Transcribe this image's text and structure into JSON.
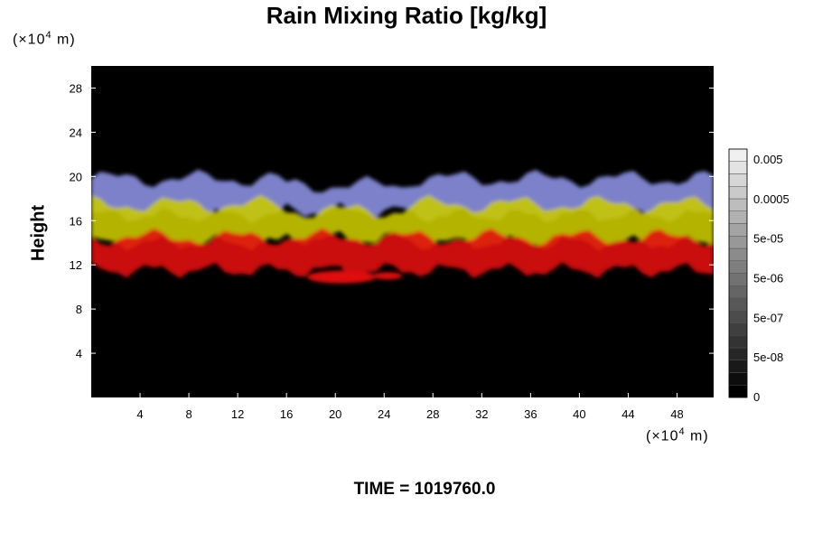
{
  "chart_data": {
    "type": "heatmap",
    "title": "Rain Mixing Ratio [kg/kg]",
    "ylabel": "Height",
    "xlabel": "",
    "x_unit_prefix": "(×10",
    "x_unit_exp": "4",
    "x_unit_suffix": " m)",
    "y_unit_prefix": "(×10",
    "y_unit_exp": "4",
    "y_unit_suffix": " m)",
    "xlim": [
      0,
      51
    ],
    "ylim": [
      0,
      30
    ],
    "x_ticks": [
      4,
      8,
      12,
      16,
      20,
      24,
      28,
      32,
      36,
      40,
      44,
      48
    ],
    "y_ticks": [
      4,
      8,
      12,
      16,
      20,
      24,
      28
    ],
    "x_tick_labels": [
      "4",
      "8",
      "12",
      "16",
      "20",
      "24",
      "28",
      "32",
      "36",
      "40",
      "44",
      "48"
    ],
    "y_tick_labels": [
      "4",
      "8",
      "12",
      "16",
      "20",
      "24",
      "28"
    ],
    "background": "#000000",
    "layers": [
      {
        "name": "blue",
        "color": "#8a8fe0",
        "y_bottom": 16.5,
        "y_top": 19.8
      },
      {
        "name": "yellow",
        "color": "#c8c800",
        "y_bottom": 14,
        "y_top": 17.5
      },
      {
        "name": "red",
        "color": "#e01010",
        "y_bottom": 11.5,
        "y_top": 14.5
      }
    ],
    "colorbar": {
      "scale": "log",
      "levels": 20,
      "labels": [
        "0",
        "5e-08",
        "5e-07",
        "5e-06",
        "5e-05",
        "0.0005",
        "0.005"
      ],
      "color_low": "#000000",
      "color_high": "#f0f0f0"
    }
  },
  "footer": {
    "label": "TIME = 1019760.0"
  }
}
